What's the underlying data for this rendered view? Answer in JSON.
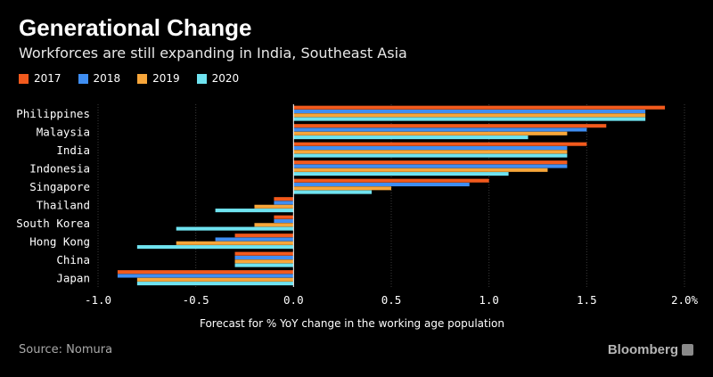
{
  "header": {
    "title": "Generational Change",
    "subtitle": "Workforces are still expanding in India, Southeast Asia"
  },
  "footer": {
    "source": "Source: Nomura",
    "brand": "Bloomberg"
  },
  "chart_data": {
    "type": "bar",
    "orientation": "horizontal",
    "categories": [
      "Philippines",
      "Malaysia",
      "India",
      "Indonesia",
      "Singapore",
      "Thailand",
      "South Korea",
      "Hong Kong",
      "China",
      "Japan"
    ],
    "series": [
      {
        "name": "2017",
        "color": "#f25a1d",
        "values": [
          1.9,
          1.6,
          1.5,
          1.4,
          1.0,
          -0.1,
          -0.1,
          -0.3,
          -0.3,
          -0.9
        ]
      },
      {
        "name": "2018",
        "color": "#3f8ef2",
        "values": [
          1.8,
          1.5,
          1.4,
          1.4,
          0.9,
          -0.1,
          -0.1,
          -0.4,
          -0.3,
          -0.9
        ]
      },
      {
        "name": "2019",
        "color": "#f7a63a",
        "values": [
          1.8,
          1.4,
          1.4,
          1.3,
          0.5,
          -0.2,
          -0.2,
          -0.6,
          -0.3,
          -0.8
        ]
      },
      {
        "name": "2020",
        "color": "#6fe3f0",
        "values": [
          1.8,
          1.2,
          1.4,
          1.1,
          0.4,
          -0.4,
          -0.6,
          -0.8,
          -0.3,
          -0.8
        ]
      }
    ],
    "xlabel": "Forecast for % YoY change in the working age population",
    "xlim": [
      -1.0,
      2.0
    ],
    "xticks": [
      -1.0,
      -0.5,
      0.0,
      0.5,
      1.0,
      1.5,
      2.0
    ],
    "xtick_labels": [
      "-1.0",
      "-0.5",
      "0.0",
      "0.5",
      "1.0",
      "1.5",
      "2.0%"
    ],
    "grid": "vertical",
    "legend": "top-left"
  }
}
